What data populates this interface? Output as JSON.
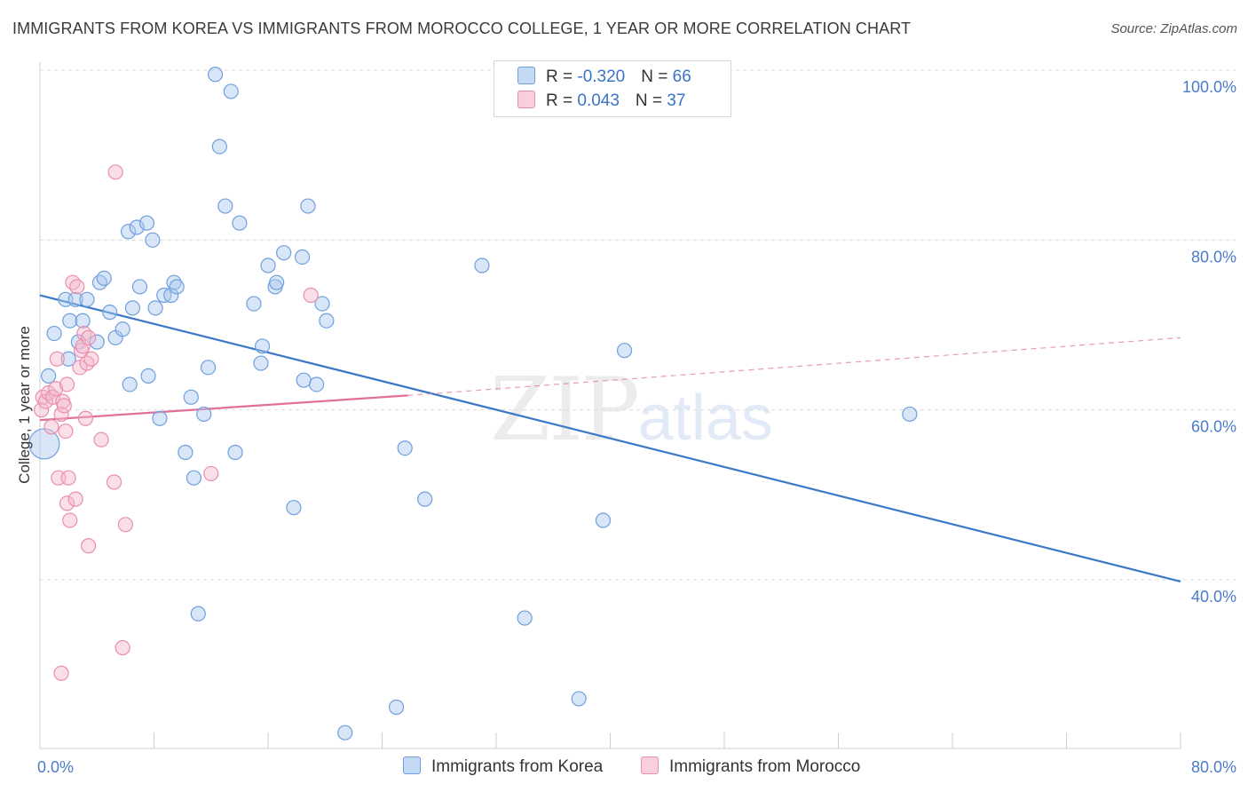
{
  "header": {
    "title": "IMMIGRANTS FROM KOREA VS IMMIGRANTS FROM MOROCCO COLLEGE, 1 YEAR OR MORE CORRELATION CHART",
    "source": "Source: ZipAtlas.com"
  },
  "watermark": {
    "zip": "ZIP",
    "atlas": "atlas"
  },
  "legend": {
    "korea": {
      "r_label": "R = ",
      "r_value": "-0.320",
      "n_label": "N = ",
      "n_value": "66",
      "color": "#aac8f0"
    },
    "morocco": {
      "r_label": "R = ",
      "r_value": " 0.043",
      "n_label": "N = ",
      "n_value": "37",
      "color": "#f5b8cb"
    }
  },
  "bottom_legend": {
    "korea": "Immigrants from Korea",
    "morocco": "Immigrants from Morocco"
  },
  "chart_data": {
    "type": "scatter",
    "title": "IMMIGRANTS FROM KOREA VS IMMIGRANTS FROM MOROCCO COLLEGE, 1 YEAR OR MORE CORRELATION CHART",
    "xlabel": "",
    "ylabel": "College, 1 year or more",
    "xlim": [
      0,
      80
    ],
    "ylim": [
      20,
      102
    ],
    "x_tick_labels": [
      "0.0%",
      "80.0%"
    ],
    "y_ticks": [
      100,
      80,
      60,
      40
    ],
    "y_tick_labels": [
      "100.0%",
      "80.0%",
      "60.0%",
      "40.0%"
    ],
    "grid": true,
    "legend_placement": "top-center",
    "series": [
      {
        "name": "Immigrants from Korea",
        "color": "#aac8f0",
        "stroke": "#6f9fde",
        "trend_color": "#3a78c8",
        "trend": {
          "x": [
            0,
            80
          ],
          "y": [
            73.5,
            39.8
          ]
        },
        "points": [
          [
            0.3,
            56
          ],
          [
            0.6,
            64
          ],
          [
            1.0,
            69
          ],
          [
            1.8,
            73
          ],
          [
            2.0,
            66
          ],
          [
            2.1,
            70.5
          ],
          [
            2.5,
            73
          ],
          [
            2.7,
            68
          ],
          [
            3.0,
            70.5
          ],
          [
            3.3,
            73
          ],
          [
            4.0,
            68
          ],
          [
            4.2,
            75
          ],
          [
            4.5,
            75.5
          ],
          [
            4.9,
            71.5
          ],
          [
            5.3,
            68.5
          ],
          [
            5.8,
            69.5
          ],
          [
            6.2,
            81
          ],
          [
            6.3,
            63
          ],
          [
            6.5,
            72
          ],
          [
            6.8,
            81.5
          ],
          [
            7.0,
            74.5
          ],
          [
            7.5,
            82
          ],
          [
            7.6,
            64
          ],
          [
            7.9,
            80
          ],
          [
            8.1,
            72
          ],
          [
            8.4,
            59
          ],
          [
            8.7,
            73.5
          ],
          [
            9.2,
            73.5
          ],
          [
            9.4,
            75
          ],
          [
            9.6,
            74.5
          ],
          [
            10.2,
            55
          ],
          [
            10.6,
            61.5
          ],
          [
            10.8,
            52
          ],
          [
            11.1,
            36
          ],
          [
            11.5,
            59.5
          ],
          [
            11.8,
            65
          ],
          [
            12.3,
            99.5
          ],
          [
            12.6,
            91
          ],
          [
            13.0,
            84
          ],
          [
            13.4,
            97.5
          ],
          [
            13.7,
            55
          ],
          [
            14.0,
            82
          ],
          [
            15.0,
            72.5
          ],
          [
            15.5,
            65.5
          ],
          [
            15.6,
            67.5
          ],
          [
            16.0,
            77
          ],
          [
            16.5,
            74.5
          ],
          [
            16.6,
            75
          ],
          [
            17.1,
            78.5
          ],
          [
            17.8,
            48.5
          ],
          [
            18.4,
            78
          ],
          [
            18.5,
            63.5
          ],
          [
            18.8,
            84
          ],
          [
            19.4,
            63
          ],
          [
            19.8,
            72.5
          ],
          [
            20.1,
            70.5
          ],
          [
            21.4,
            22
          ],
          [
            25.0,
            25
          ],
          [
            25.6,
            55.5
          ],
          [
            27.0,
            49.5
          ],
          [
            31.0,
            77
          ],
          [
            34.0,
            35.5
          ],
          [
            39.5,
            47
          ],
          [
            41.0,
            67
          ],
          [
            61.0,
            59.5
          ],
          [
            37.8,
            26
          ]
        ]
      },
      {
        "name": "Immigrants from Morocco",
        "color": "#f5b8cb",
        "stroke": "#e98fad",
        "trend_color": "#e0709a",
        "trend": {
          "x": [
            0,
            25.8
          ],
          "y": [
            58.8,
            61.7
          ]
        },
        "trend_extension": {
          "x": [
            25.8,
            80
          ],
          "y": [
            61.7,
            68.5
          ]
        },
        "points": [
          [
            0.1,
            60
          ],
          [
            0.2,
            61.5
          ],
          [
            0.4,
            61
          ],
          [
            0.6,
            62
          ],
          [
            0.8,
            58
          ],
          [
            0.9,
            61.5
          ],
          [
            1.1,
            62.5
          ],
          [
            1.2,
            66
          ],
          [
            1.3,
            52
          ],
          [
            1.5,
            59.5
          ],
          [
            1.6,
            61
          ],
          [
            1.7,
            60.5
          ],
          [
            1.8,
            57.5
          ],
          [
            1.9,
            49
          ],
          [
            1.9,
            63
          ],
          [
            2.0,
            52
          ],
          [
            2.1,
            47
          ],
          [
            2.3,
            75
          ],
          [
            2.5,
            49.5
          ],
          [
            2.6,
            74.5
          ],
          [
            2.8,
            65
          ],
          [
            2.9,
            67
          ],
          [
            3.0,
            67.5
          ],
          [
            3.1,
            69
          ],
          [
            3.2,
            59
          ],
          [
            3.3,
            65.5
          ],
          [
            3.4,
            68.5
          ],
          [
            3.4,
            44
          ],
          [
            3.6,
            66
          ],
          [
            4.3,
            56.5
          ],
          [
            5.2,
            51.5
          ],
          [
            5.3,
            88
          ],
          [
            5.8,
            32
          ],
          [
            6.0,
            46.5
          ],
          [
            12.0,
            52.5
          ],
          [
            19.0,
            73.5
          ],
          [
            1.5,
            29
          ]
        ]
      }
    ]
  }
}
